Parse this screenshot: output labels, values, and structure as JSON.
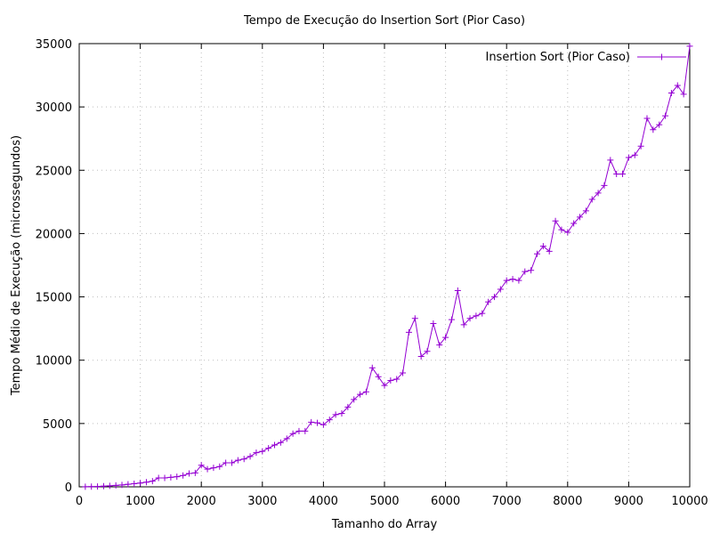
{
  "chart_data": {
    "type": "line",
    "title": "Tempo de Execução do Insertion Sort (Pior Caso)",
    "xlabel": "Tamanho do Array",
    "ylabel": "Tempo Médio de Execução (microssegundos)",
    "xlim": [
      0,
      10000
    ],
    "ylim": [
      0,
      35000
    ],
    "xticks": [
      0,
      1000,
      2000,
      3000,
      4000,
      5000,
      6000,
      7000,
      8000,
      9000,
      10000
    ],
    "yticks": [
      0,
      5000,
      10000,
      15000,
      20000,
      25000,
      30000,
      35000
    ],
    "grid": true,
    "legend_position": "top-right",
    "series_color": "#9400d3",
    "marker": "plus",
    "series": [
      {
        "name": "Insertion Sort (Pior Caso)",
        "x": [
          100,
          200,
          300,
          400,
          500,
          600,
          700,
          800,
          900,
          1000,
          1100,
          1200,
          1300,
          1400,
          1500,
          1600,
          1700,
          1800,
          1900,
          2000,
          2100,
          2200,
          2300,
          2400,
          2500,
          2600,
          2700,
          2800,
          2900,
          3000,
          3100,
          3200,
          3300,
          3400,
          3500,
          3600,
          3700,
          3800,
          3900,
          4000,
          4100,
          4200,
          4300,
          4400,
          4500,
          4600,
          4700,
          4800,
          4900,
          5000,
          5100,
          5200,
          5300,
          5400,
          5500,
          5600,
          5700,
          5800,
          5900,
          6000,
          6100,
          6200,
          6300,
          6400,
          6500,
          6600,
          6700,
          6800,
          6900,
          7000,
          7100,
          7200,
          7300,
          7400,
          7500,
          7600,
          7700,
          7800,
          7900,
          8000,
          8100,
          8200,
          8300,
          8400,
          8500,
          8600,
          8700,
          8800,
          8900,
          9000,
          9100,
          9200,
          9300,
          9400,
          9500,
          9600,
          9700,
          9800,
          9900,
          10000
        ],
        "y": [
          5,
          15,
          30,
          55,
          80,
          110,
          150,
          200,
          250,
          300,
          370,
          450,
          700,
          700,
          750,
          800,
          900,
          1050,
          1100,
          1700,
          1400,
          1500,
          1600,
          1900,
          1900,
          2100,
          2200,
          2400,
          2700,
          2800,
          3050,
          3300,
          3500,
          3800,
          4200,
          4400,
          4400,
          5100,
          5050,
          4900,
          5300,
          5700,
          5800,
          6300,
          6900,
          7300,
          7500,
          9400,
          8700,
          8000,
          8400,
          8500,
          9000,
          12200,
          13300,
          10300,
          10700,
          12900,
          11200,
          11800,
          13200,
          15500,
          12800,
          13300,
          13500,
          13700,
          14600,
          15000,
          15600,
          16300,
          16400,
          16300,
          17000,
          17100,
          18400,
          19000,
          18600,
          21000,
          20300,
          20100,
          20800,
          21300,
          21800,
          22700,
          23200,
          23800,
          25800,
          24700,
          24700,
          26000,
          26200,
          26900,
          29100,
          28200,
          28600,
          29300,
          31100,
          31700,
          31000,
          34800
        ]
      }
    ]
  }
}
